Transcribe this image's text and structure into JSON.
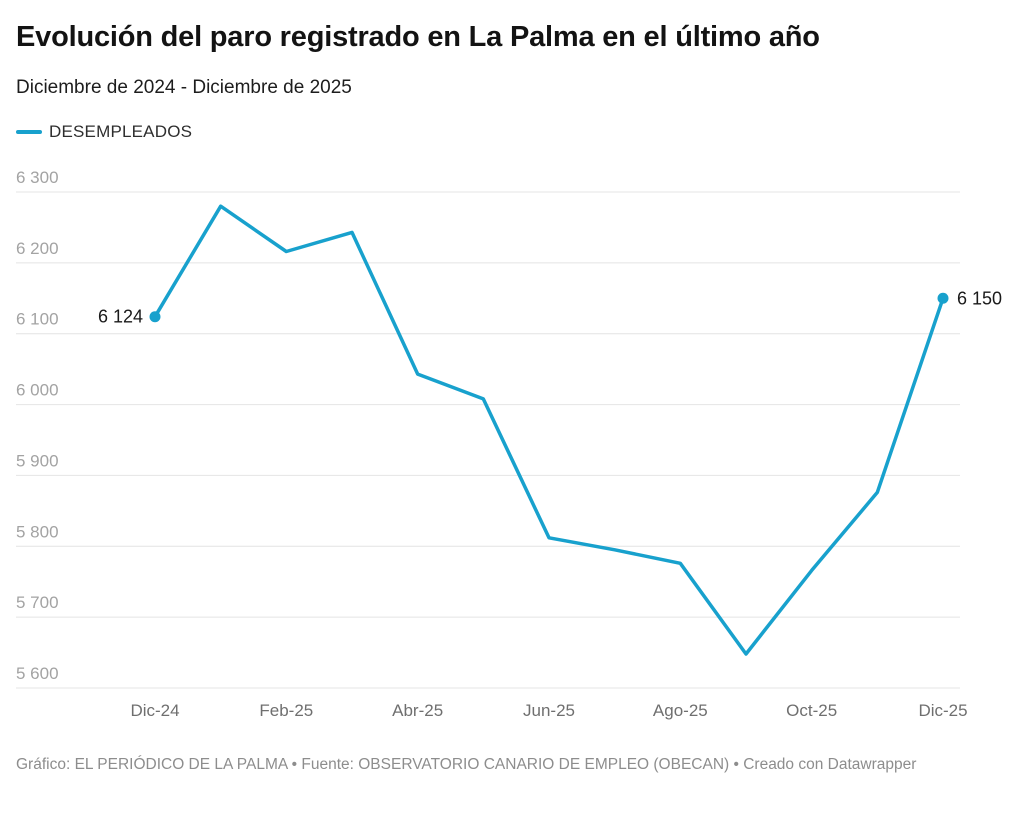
{
  "header": {
    "title": "Evolución del paro registrado en La Palma en el último año",
    "subtitle": "Diciembre de 2024 - Diciembre de 2025"
  },
  "legend": {
    "series_label": "DESEMPLEADOS",
    "swatch_color": "#18a1cd"
  },
  "chart_data": {
    "type": "line",
    "title": "Evolución del paro registrado en La Palma en el último año",
    "subtitle": "Diciembre de 2024 - Diciembre de 2025",
    "ylim": [
      5600,
      6300
    ],
    "grid": "horizontal",
    "legend_position": "top-left",
    "y_ticks": [
      {
        "value": 6300,
        "label": "6 300"
      },
      {
        "value": 6200,
        "label": "6 200"
      },
      {
        "value": 6100,
        "label": "6 100"
      },
      {
        "value": 6000,
        "label": "6 000"
      },
      {
        "value": 5900,
        "label": "5 900"
      },
      {
        "value": 5800,
        "label": "5 800"
      },
      {
        "value": 5700,
        "label": "5 700"
      },
      {
        "value": 5600,
        "label": "5 600"
      }
    ],
    "x_ticks": [
      {
        "index": 0,
        "label": "Dic-24"
      },
      {
        "index": 2,
        "label": "Feb-25"
      },
      {
        "index": 4,
        "label": "Abr-25"
      },
      {
        "index": 6,
        "label": "Jun-25"
      },
      {
        "index": 8,
        "label": "Ago-25"
      },
      {
        "index": 10,
        "label": "Oct-25"
      },
      {
        "index": 12,
        "label": "Dic-25"
      }
    ],
    "series": [
      {
        "name": "DESEMPLEADOS",
        "color": "#18a1cd",
        "values": [
          6124,
          6280,
          6216,
          6243,
          6043,
          6008,
          5812,
          5795,
          5776,
          5648,
          5766,
          5876,
          6150
        ]
      }
    ],
    "point_labels": [
      {
        "index": 0,
        "text": "6 124",
        "side": "left"
      },
      {
        "index": 12,
        "text": "6 150",
        "side": "right"
      }
    ]
  },
  "footer": {
    "attribution": "Gráfico: EL PERIÓDICO DE LA PALMA • Fuente: OBSERVATORIO CANARIO DE EMPLEO (OBECAN) • Creado con Datawrapper"
  },
  "colors": {
    "line": "#18a1cd",
    "gridline": "#e4e4e4",
    "y_tick_label": "#a3a3a3",
    "x_tick_label": "#6f6f6f",
    "point_label": "#1a1a1a"
  }
}
